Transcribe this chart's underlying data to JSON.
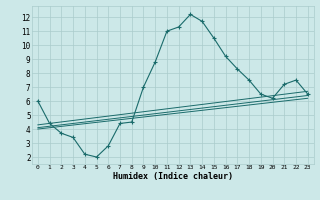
{
  "title": "",
  "xlabel": "Humidex (Indice chaleur)",
  "bg_color": "#cce8e8",
  "grid_color": "#aacccc",
  "line_color": "#1a6b6b",
  "xlim": [
    -0.5,
    23.5
  ],
  "ylim": [
    1.5,
    12.8
  ],
  "xticks": [
    0,
    1,
    2,
    3,
    4,
    5,
    6,
    7,
    8,
    9,
    10,
    11,
    12,
    13,
    14,
    15,
    16,
    17,
    18,
    19,
    20,
    21,
    22,
    23
  ],
  "yticks": [
    2,
    3,
    4,
    5,
    6,
    7,
    8,
    9,
    10,
    11,
    12
  ],
  "x_main": [
    0,
    1,
    2,
    3,
    4,
    5,
    6,
    7,
    8,
    9,
    10,
    11,
    12,
    13,
    14,
    15,
    16,
    17,
    18,
    19,
    20,
    21,
    22,
    23
  ],
  "y_main": [
    6.0,
    4.4,
    3.7,
    3.4,
    2.2,
    2.0,
    2.8,
    4.4,
    4.5,
    7.0,
    8.8,
    11.0,
    11.3,
    12.2,
    11.7,
    10.5,
    9.2,
    8.3,
    7.5,
    6.5,
    6.2,
    7.2,
    7.5,
    6.5
  ],
  "line1_x": [
    0,
    23
  ],
  "line1_y": [
    4.3,
    6.7
  ],
  "line2_x": [
    0,
    23
  ],
  "line2_y": [
    4.1,
    6.4
  ],
  "line3_x": [
    0,
    23
  ],
  "line3_y": [
    4.0,
    6.2
  ]
}
